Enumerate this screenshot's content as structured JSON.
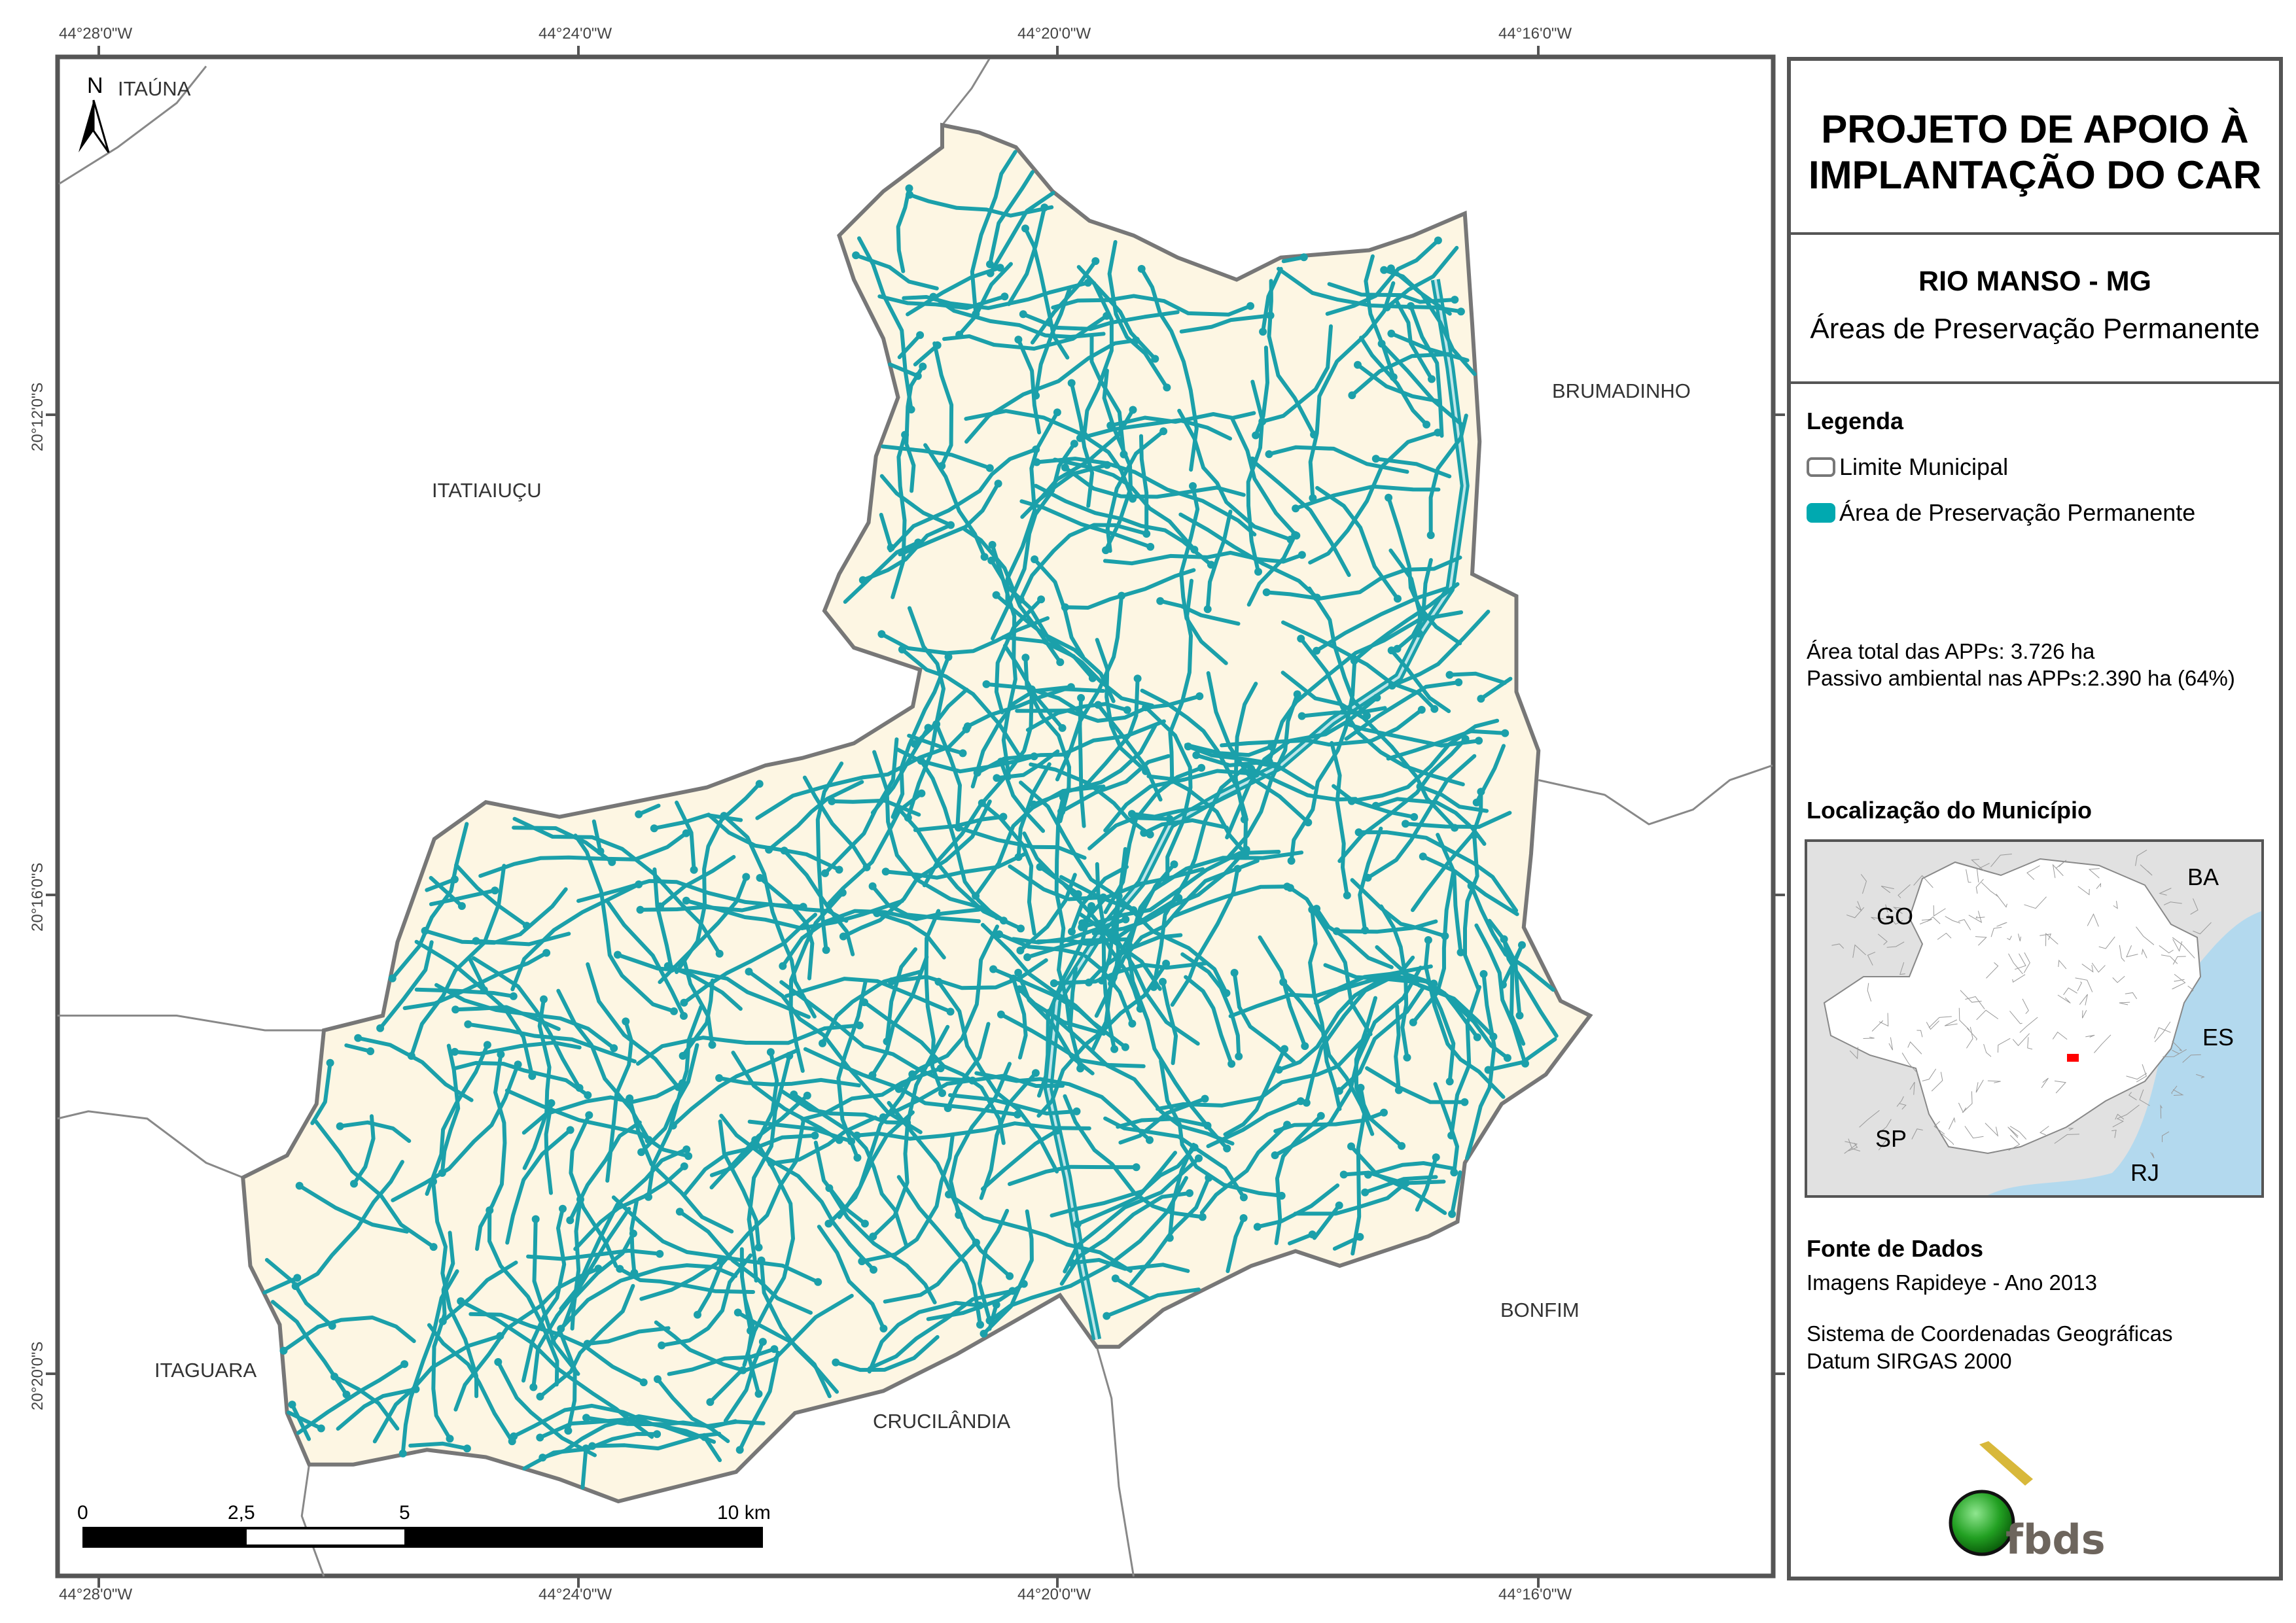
{
  "coordinates": {
    "longitudes": [
      "44°28'0\"W",
      "44°24'0\"W",
      "44°20'0\"W",
      "44°16'0\"W"
    ],
    "latitudes": [
      "20°12'0\"S",
      "20°16'0\"S",
      "20°20'0\"S"
    ]
  },
  "north_arrow": {
    "label": "N"
  },
  "neighbors": [
    "ITAÚNA",
    "ITATIAIUÇU",
    "BRUMADINHO",
    "BONFIM",
    "CRUCILÂNDIA",
    "ITAGUARA"
  ],
  "scale_bar": {
    "labels": [
      "0",
      "2,5",
      "5",
      "10 km"
    ]
  },
  "panel": {
    "title": "PROJETO DE APOIO À IMPLANTAÇÃO DO CAR",
    "municipality": "RIO MANSO - MG",
    "theme": "Áreas de Preservação Permanente",
    "legend": {
      "heading": "Legenda",
      "items": [
        {
          "label": "Limite Municipal",
          "color": "#ffffff"
        },
        {
          "label": "Área de Preservação Permanente",
          "color": "#00a9b0"
        }
      ]
    },
    "stats": {
      "total": "Área total das APPs: 3.726 ha",
      "passivo": "Passivo ambiental nas APPs:2.390 ha (64%)"
    },
    "location": {
      "heading": "Localização do Município",
      "states": [
        "BA",
        "GO",
        "ES",
        "SP",
        "RJ"
      ]
    },
    "sources": {
      "heading": "Fonte de Dados",
      "lines": [
        "Imagens Rapideye - Ano 2013",
        "Sistema de Coordenadas Geográficas",
        "Datum SIRGAS 2000"
      ]
    },
    "logo": "fbds"
  },
  "colors": {
    "municipality_fill": "#fdf6e3",
    "app": "#1ba0aa",
    "boundary": "#777777",
    "ocean": "#b3d9ee",
    "locator": "#ff0000"
  }
}
